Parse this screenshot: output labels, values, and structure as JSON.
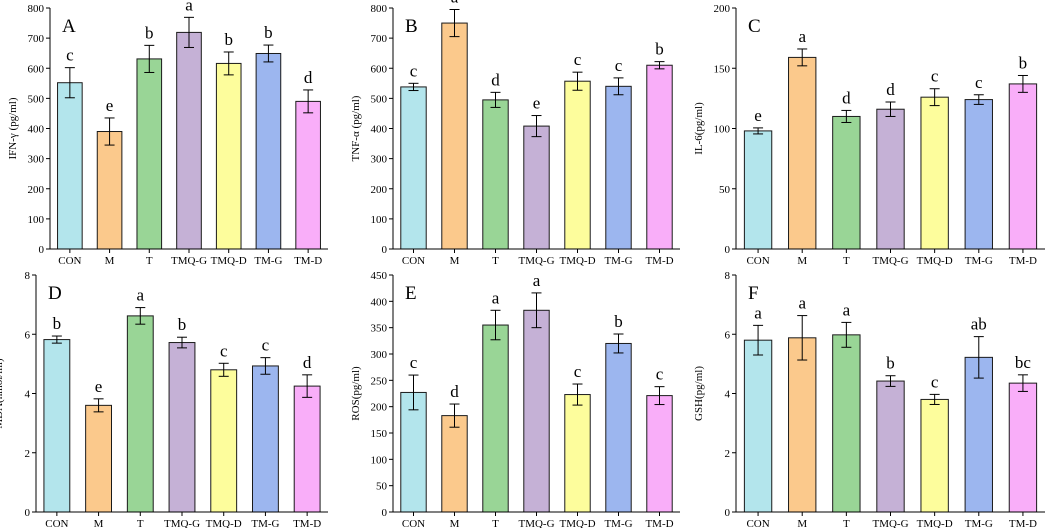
{
  "colors": {
    "CON": "#b3e5ec",
    "M": "#fbc98c",
    "T": "#99d596",
    "TMQ-G": "#c5b1d6",
    "TMQ-D": "#fdfd9c",
    "TM-G": "#9cb6ef",
    "TM-D": "#f9aef9"
  },
  "chart_data": [
    {
      "type": "bar",
      "panel_label": "A",
      "categories": [
        "CON",
        "M",
        "T",
        "TMQ-G",
        "TMQ-D",
        "TM-G",
        "TM-D"
      ],
      "values": [
        552,
        390,
        631,
        719,
        616,
        649,
        490
      ],
      "errors": [
        50,
        45,
        45,
        50,
        38,
        28,
        38
      ],
      "letters": [
        "c",
        "e",
        "b",
        "a",
        "b",
        "b",
        "d"
      ],
      "ylabel": "IFN-γ (pg/ml)",
      "ylim": [
        0,
        800
      ],
      "yticks": [
        "0",
        "100",
        "200",
        "300",
        "400",
        "500",
        "600",
        "700",
        "800"
      ]
    },
    {
      "type": "bar",
      "panel_label": "B",
      "categories": [
        "CON",
        "M",
        "T",
        "TMQ-G",
        "TMQ-D",
        "TM-G",
        "TM-D"
      ],
      "values": [
        538,
        750,
        495,
        408,
        557,
        540,
        610
      ],
      "errors": [
        12,
        45,
        25,
        35,
        30,
        28,
        12
      ],
      "letters": [
        "c",
        "a",
        "d",
        "e",
        "c",
        "c",
        "b"
      ],
      "ylabel": "TNF-α (pg/ml)",
      "ylim": [
        0,
        800
      ],
      "yticks": [
        "0",
        "100",
        "200",
        "300",
        "400",
        "500",
        "600",
        "700",
        "800"
      ]
    },
    {
      "type": "bar",
      "panel_label": "C",
      "categories": [
        "CON",
        "M",
        "T",
        "TMQ-G",
        "TMQ-D",
        "TM-G",
        "TM-D"
      ],
      "values": [
        98,
        159,
        110,
        116,
        126,
        124,
        137
      ],
      "errors": [
        2.5,
        7,
        5,
        6,
        7,
        4,
        7
      ],
      "letters": [
        "e",
        "a",
        "d",
        "d",
        "c",
        "c",
        "b"
      ],
      "ylabel": "IL-6(pg/ml)",
      "ylim": [
        0,
        200
      ],
      "yticks": [
        "0",
        "50",
        "100",
        "150",
        "200"
      ]
    },
    {
      "type": "bar",
      "panel_label": "D",
      "categories": [
        "CON",
        "M",
        "T",
        "TMQ-G",
        "TMQ-D",
        "TM-G",
        "TM-D"
      ],
      "values": [
        5.82,
        3.6,
        6.62,
        5.72,
        4.8,
        4.93,
        4.25
      ],
      "errors": [
        0.12,
        0.22,
        0.28,
        0.18,
        0.22,
        0.28,
        0.38
      ],
      "letters": [
        "b",
        "e",
        "a",
        "b",
        "c",
        "c",
        "d"
      ],
      "ylabel": "MDA(nmol/ml)",
      "ylim": [
        0,
        8
      ],
      "yticks": [
        "0",
        "2",
        "4",
        "6",
        "8"
      ]
    },
    {
      "type": "bar",
      "panel_label": "E",
      "categories": [
        "CON",
        "M",
        "T",
        "TMQ-G",
        "TMQ-D",
        "TM-G",
        "TM-D"
      ],
      "values": [
        227,
        183,
        355,
        383,
        223,
        320,
        221
      ],
      "errors": [
        33,
        22,
        28,
        33,
        20,
        18,
        17
      ],
      "letters": [
        "c",
        "d",
        "a",
        "a",
        "c",
        "b",
        "c"
      ],
      "ylabel": "ROS(pg/ml)",
      "ylim": [
        0,
        450
      ],
      "yticks": [
        "0",
        "50",
        "100",
        "150",
        "200",
        "250",
        "300",
        "350",
        "400",
        "450"
      ]
    },
    {
      "type": "bar",
      "panel_label": "F",
      "categories": [
        "CON",
        "M",
        "T",
        "TMQ-G",
        "TMQ-D",
        "TM-G",
        "TM-D"
      ],
      "values": [
        5.8,
        5.88,
        5.98,
        4.42,
        3.8,
        5.22,
        4.35
      ],
      "errors": [
        0.5,
        0.75,
        0.42,
        0.18,
        0.17,
        0.7,
        0.28
      ],
      "letters": [
        "a",
        "a",
        "a",
        "b",
        "c",
        "ab",
        "bc"
      ],
      "ylabel": "GSH(pg/ml)",
      "ylim": [
        0,
        8
      ],
      "yticks": [
        "0",
        "2",
        "4",
        "6",
        "8"
      ]
    }
  ]
}
